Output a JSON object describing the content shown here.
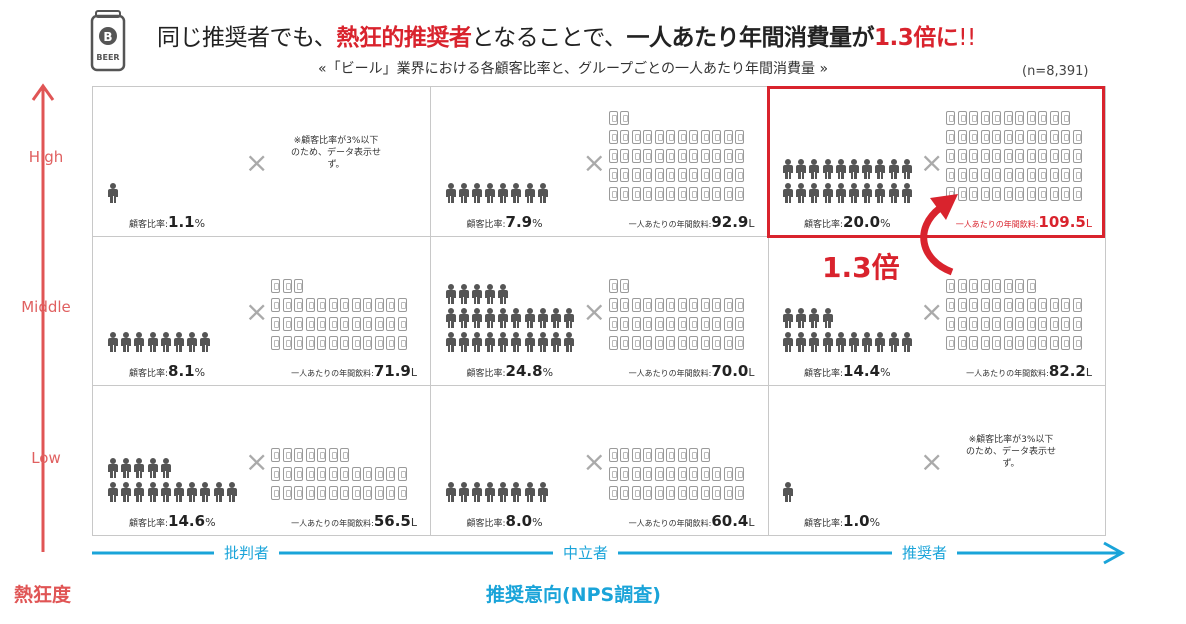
{
  "title": {
    "p1": "同じ推奨者でも、",
    "p2": "熱狂的推奨者",
    "p3": "となることで、",
    "p4": "一人あたり年間消費量が",
    "p5": "1.3倍に",
    "p6": "!!"
  },
  "subtitle": "«「ビール」業界における各顧客比率と、グループごとの一人あたり年間消費量 »",
  "sample_size": "(n=8,391)",
  "logo_text": "BEER",
  "logo_letter": "B",
  "y_axis": {
    "title": "熱狂度",
    "levels": [
      "High",
      "Middle",
      "Low"
    ]
  },
  "x_axis": {
    "title": "推奨意向(NPS調査)",
    "groups": [
      "批判者",
      "中立者",
      "推奨者"
    ]
  },
  "labels": {
    "ratio_prefix": "顧客比率:",
    "ratio_unit": "%",
    "consumption_prefix": "一人あたりの年間飲料:",
    "consumption_unit": "L",
    "times": "×",
    "no_data": "※顧客比率が3%以下のため、データ表示せず。"
  },
  "multiplier": "1.3倍",
  "colors": {
    "highlight": "#d9232d",
    "x_axis": "#1aa4d9",
    "y_axis": "#e05555",
    "icon": "#555555"
  },
  "chart_data": {
    "type": "table",
    "rows": [
      "High",
      "Middle",
      "Low"
    ],
    "columns": [
      "批判者",
      "中立者",
      "推奨者"
    ],
    "customer_ratio_pct": [
      [
        1.1,
        7.9,
        20.0
      ],
      [
        8.1,
        24.8,
        14.4
      ],
      [
        14.6,
        8.0,
        1.0
      ]
    ],
    "annual_consumption_l": [
      [
        null,
        92.9,
        109.5
      ],
      [
        71.9,
        70.0,
        82.2
      ],
      [
        56.5,
        60.4,
        null
      ]
    ],
    "highlight_cell": {
      "row": "High",
      "column": "推奨者"
    },
    "comparison": {
      "from": {
        "row": "Middle",
        "column": "推奨者"
      },
      "to": {
        "row": "High",
        "column": "推奨者"
      },
      "label": "1.3倍"
    }
  }
}
